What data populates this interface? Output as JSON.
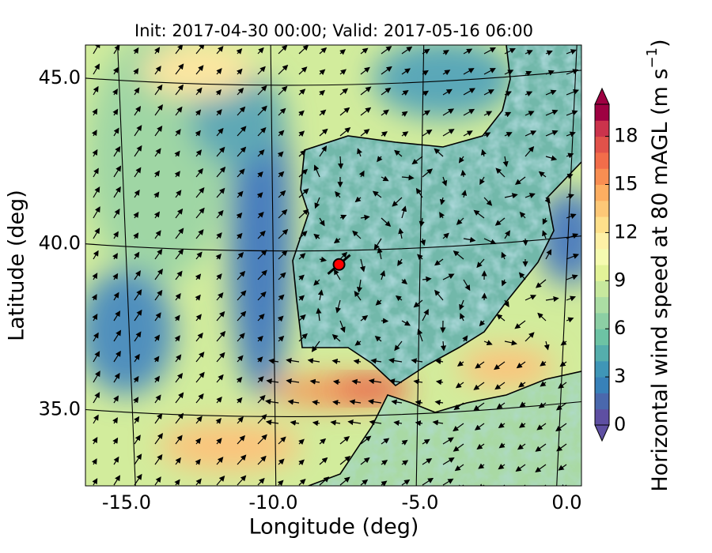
{
  "map": {
    "title": "Init: 2017-04-30 00:00; Valid: 2017-05-16 06:00",
    "xlabel": "Longitude (deg)",
    "ylabel": "Latitude (deg)",
    "xlim": [
      -16.4,
      0.5
    ],
    "ylim": [
      32.7,
      46.0
    ],
    "xticks": [
      {
        "value": -15,
        "label": "-15.0"
      },
      {
        "value": -10,
        "label": "-10.0"
      },
      {
        "value": -5,
        "label": "-5.0"
      },
      {
        "value": 0,
        "label": "0.0"
      }
    ],
    "yticks": [
      {
        "value": 35,
        "label": "35.0"
      },
      {
        "value": 40,
        "label": "40.0"
      },
      {
        "value": 45,
        "label": "45.0"
      }
    ],
    "marker": {
      "lon": -7.76,
      "lat": 39.38,
      "color": "#ff0000"
    },
    "colorbar": {
      "label": "Horizontal wind speed at 80 mAGL (m s",
      "label_superscript": "−1",
      "label_end": ")",
      "clim": [
        0,
        20
      ],
      "ticks": [
        0,
        3,
        6,
        9,
        12,
        15,
        18
      ],
      "colors": [
        "#5e4fa2",
        "#4a68ad",
        "#3881b9",
        "#3f96b7",
        "#55aeac",
        "#6dc3a4",
        "#8ccfa4",
        "#abdda4",
        "#c7e89e",
        "#e2f398",
        "#f5fbb0",
        "#fef1a6",
        "#fee08b",
        "#fdc877",
        "#fdae61",
        "#f88e52",
        "#f26d4a",
        "#e1524a",
        "#cb334c",
        "#9e0142"
      ]
    }
  }
}
